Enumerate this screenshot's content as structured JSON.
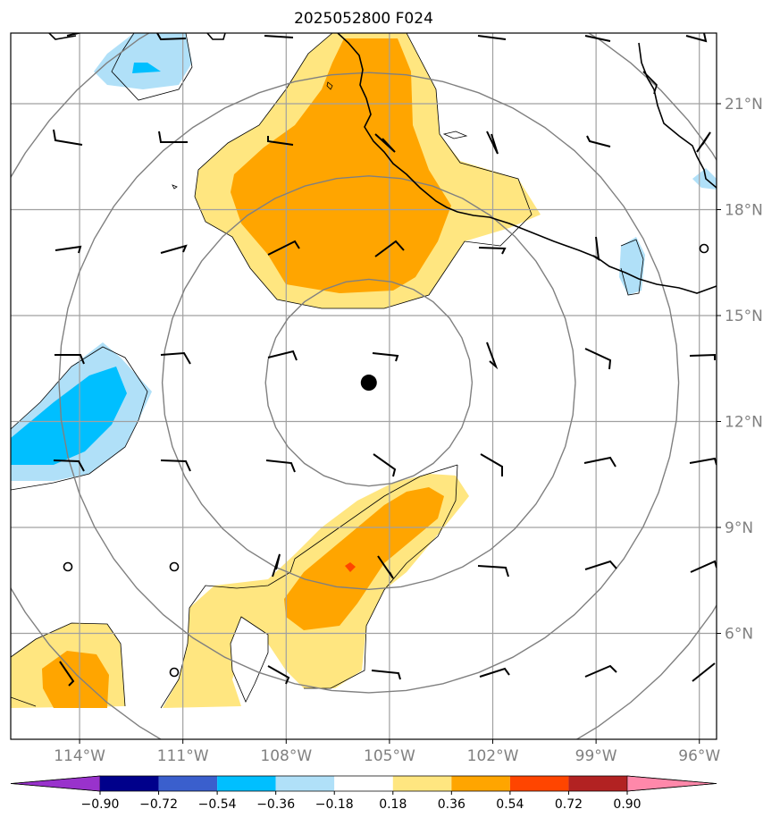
{
  "title": "2025052800 F024",
  "map": {
    "lon_range": [
      -116,
      -95.5
    ],
    "lat_range": [
      3,
      23
    ],
    "lon_ticks": [
      {
        "value": -114,
        "label": "114°W"
      },
      {
        "value": -111,
        "label": "111°W"
      },
      {
        "value": -108,
        "label": "108°W"
      },
      {
        "value": -105,
        "label": "105°W"
      },
      {
        "value": -102,
        "label": "102°W"
      },
      {
        "value": -99,
        "label": "99°W"
      },
      {
        "value": -96,
        "label": "96°W"
      }
    ],
    "lat_ticks": [
      {
        "value": 6,
        "label": "6°N"
      },
      {
        "value": 9,
        "label": "9°N"
      },
      {
        "value": 12,
        "label": "12°N"
      },
      {
        "value": 15,
        "label": "15°N"
      },
      {
        "value": 18,
        "label": "18°N"
      },
      {
        "value": 21,
        "label": "21°N"
      }
    ],
    "storm_center": {
      "lon": -105.6,
      "lat": 13.1
    },
    "range_rings_deg": [
      3,
      6,
      9,
      12
    ],
    "colors": {
      "purple": "#9932cc",
      "navy": "#00008b",
      "royal": "#3a5fcd",
      "deepsky": "#00bfff",
      "lightblue": "#b0e0f8",
      "white": "#ffffff",
      "lightyellow": "#ffe680",
      "orange": "#ffa500",
      "redorange": "#ff4500",
      "firebrick": "#b22222",
      "pink": "#ff88aa"
    }
  },
  "colorbar": {
    "labels": [
      "−0.90",
      "−0.72",
      "−0.54",
      "−0.36",
      "−0.18",
      "0.18",
      "0.36",
      "0.54",
      "0.72",
      "0.90"
    ],
    "bins": [
      "navy",
      "royal",
      "deepsky",
      "lightblue",
      "white",
      "lightyellow",
      "orange",
      "redorange",
      "firebrick"
    ],
    "under": "purple",
    "over": "pink"
  }
}
